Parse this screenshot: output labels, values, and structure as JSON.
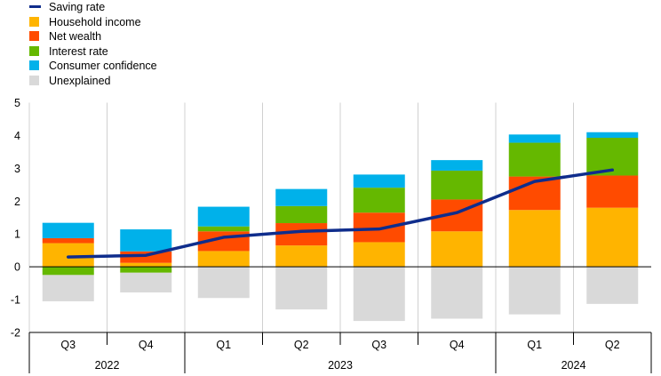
{
  "legend": [
    {
      "key": "saving_rate",
      "label": "Saving rate",
      "color": "#0f2d8c",
      "kind": "line"
    },
    {
      "key": "household_income",
      "label": "Household income",
      "color": "#ffb400",
      "kind": "box"
    },
    {
      "key": "net_wealth",
      "label": "Net wealth",
      "color": "#ff4b00",
      "kind": "box"
    },
    {
      "key": "interest_rate",
      "label": "Interest rate",
      "color": "#65b800",
      "kind": "box"
    },
    {
      "key": "consumer_confidence",
      "label": "Consumer confidence",
      "color": "#00b1ea",
      "kind": "box"
    },
    {
      "key": "unexplained",
      "label": "Unexplained",
      "color": "#d9d9d9",
      "kind": "box"
    }
  ],
  "chart_data": {
    "type": "bar",
    "stacked": true,
    "categories": [
      "Q3",
      "Q4",
      "Q1",
      "Q2",
      "Q3",
      "Q4",
      "Q1",
      "Q2"
    ],
    "year_groups": [
      {
        "label": "2022",
        "span": 2
      },
      {
        "label": "2023",
        "span": 4
      },
      {
        "label": "2024",
        "span": 2
      }
    ],
    "ylim": [
      -2,
      5
    ],
    "yticks": [
      -2,
      -1,
      0,
      1,
      2,
      3,
      4,
      5
    ],
    "grid": "vertical-category-separators",
    "legend_position": "top-left",
    "series": [
      {
        "name": "Household income",
        "key": "household_income",
        "color": "#ffb400",
        "values": [
          0.72,
          0.12,
          0.48,
          0.65,
          0.75,
          1.08,
          1.73,
          1.8
        ]
      },
      {
        "name": "Net wealth",
        "key": "net_wealth",
        "color": "#ff4b00",
        "values": [
          0.15,
          0.35,
          0.6,
          0.68,
          0.9,
          0.97,
          1.02,
          0.98
        ]
      },
      {
        "name": "Interest rate",
        "key": "interest_rate",
        "color": "#65b800",
        "values": [
          -0.25,
          -0.18,
          0.15,
          0.52,
          0.76,
          0.88,
          1.03,
          1.15
        ]
      },
      {
        "name": "Consumer confidence",
        "key": "consumer_confidence",
        "color": "#00b1ea",
        "values": [
          0.47,
          0.67,
          0.6,
          0.52,
          0.4,
          0.32,
          0.25,
          0.17
        ]
      },
      {
        "name": "Unexplained",
        "key": "unexplained",
        "color": "#d9d9d9",
        "values": [
          -0.8,
          -0.6,
          -0.95,
          -1.3,
          -1.65,
          -1.58,
          -1.45,
          -1.13
        ]
      }
    ],
    "line": {
      "name": "Saving rate",
      "key": "saving_rate",
      "color": "#0f2d8c",
      "values": [
        0.3,
        0.35,
        0.9,
        1.08,
        1.15,
        1.65,
        2.6,
        2.95
      ]
    }
  }
}
